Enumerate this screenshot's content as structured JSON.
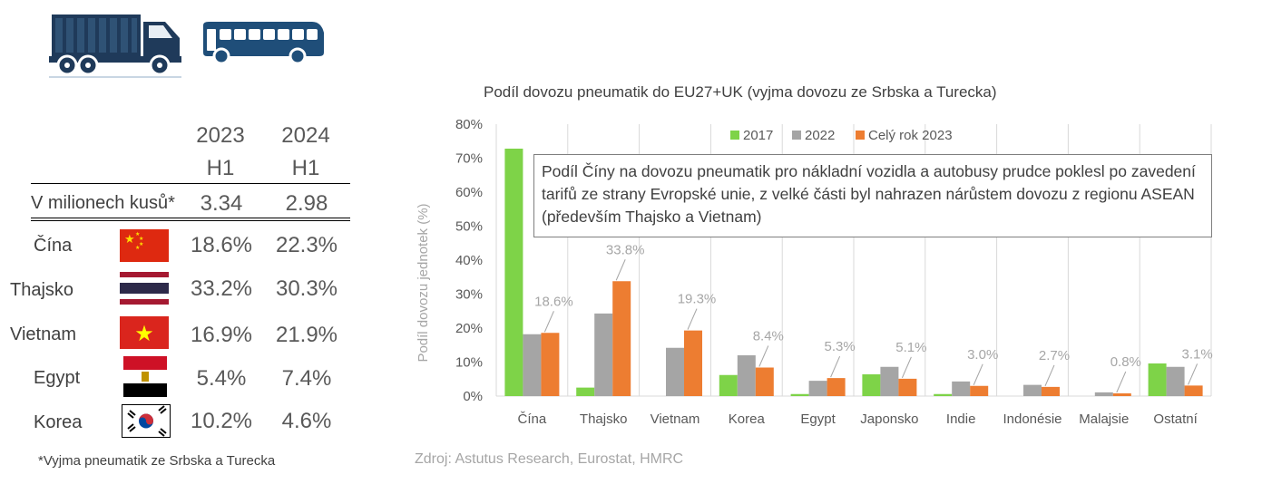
{
  "icons": [
    "truck-icon",
    "bus-icon"
  ],
  "table": {
    "year_headers": [
      {
        "year": "2023",
        "period": "H1"
      },
      {
        "year": "2024",
        "period": "H1"
      }
    ],
    "total_row": {
      "label": "V milionech kusů*",
      "values": [
        "3.34",
        "2.98"
      ]
    },
    "rows": [
      {
        "country": "Čína",
        "flag": "china-flag-icon",
        "v2023": "18.6%",
        "v2024": "22.3%"
      },
      {
        "country": "Thajsko",
        "flag": "thailand-flag-icon",
        "v2023": "33.2%",
        "v2024": "30.3%"
      },
      {
        "country": "Vietnam",
        "flag": "vietnam-flag-icon",
        "v2023": "16.9%",
        "v2024": "21.9%"
      },
      {
        "country": "Egypt",
        "flag": "egypt-flag-icon",
        "v2023": "5.4%",
        "v2024": "7.4%"
      },
      {
        "country": "Korea",
        "flag": "korea-flag-icon",
        "v2023": "10.2%",
        "v2024": "4.6%"
      }
    ],
    "footnote": "*Vyjma pneumatik ze Srbska a Turecka"
  },
  "callout": "Podíl Číny na dovozu pneumatik pro nákladní vozidla a autobusy prudce poklesl po zavedení tarifů ze strany Evropské unie, z velké části byl nahrazen nárůstem dovozu z regionu ASEAN (především Thajsko a Vietnam)",
  "source": "Zdroj: Astutus Research, Eurostat, HMRC",
  "colors": {
    "s2017": "#7ed348",
    "s2022": "#a5a5a5",
    "s2023": "#ed7d31",
    "navy": "#1f4e79",
    "truck": "#1f3a5a"
  },
  "chart_data": {
    "type": "bar",
    "title": "Podíl dovozu pneumatik do EU27+UK (vyjma dovozu ze Srbska a Turecka)",
    "xlabel": "",
    "ylabel": "Podíl dovozu jednotek (%)",
    "ylim": [
      0,
      80
    ],
    "yticks": [
      "0%",
      "10%",
      "20%",
      "30%",
      "40%",
      "50%",
      "60%",
      "70%",
      "80%"
    ],
    "categories": [
      "Čína",
      "Thajsko",
      "Vietnam",
      "Korea",
      "Egypt",
      "Japonsko",
      "Indie",
      "Indonésie",
      "Malajsie",
      "Ostatní"
    ],
    "series": [
      {
        "name": "2017",
        "color": "#7ed348",
        "values": [
          72.8,
          2.5,
          0,
          6.2,
          0.6,
          6.4,
          0.6,
          0,
          0,
          9.6
        ]
      },
      {
        "name": "2022",
        "color": "#a5a5a5",
        "values": [
          18.2,
          24.3,
          14.2,
          12.0,
          4.5,
          8.6,
          4.3,
          3.3,
          1.1,
          8.6
        ]
      },
      {
        "name": "Celý rok 2023",
        "color": "#ed7d31",
        "values": [
          18.6,
          33.8,
          19.3,
          8.4,
          5.3,
          5.1,
          3.0,
          2.7,
          0.8,
          3.1
        ]
      }
    ],
    "data_labels": [
      "18.6%",
      "33.8%",
      "19.3%",
      "8.4%",
      "5.3%",
      "5.1%",
      "3.0%",
      "2.7%",
      "0.8%",
      "3.1%"
    ],
    "grid": "vertical",
    "legend": "top"
  }
}
